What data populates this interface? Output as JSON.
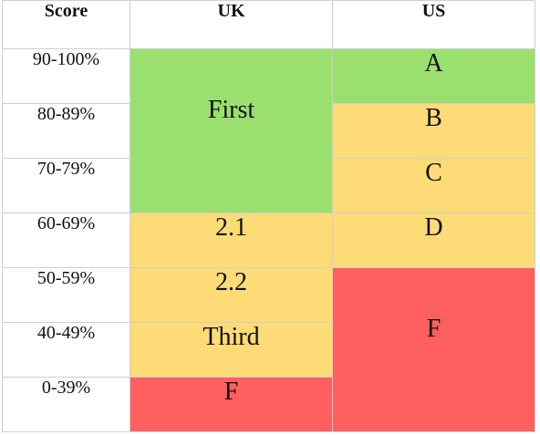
{
  "table": {
    "headers": {
      "score": "Score",
      "uk": "UK",
      "us": "US"
    },
    "score_ranges": [
      "90-100%",
      "80-89%",
      "70-79%",
      "60-69%",
      "50-59%",
      "40-49%",
      "0-39%"
    ],
    "uk_grades": {
      "first": "First",
      "two_one": "2.1",
      "two_two": "2.2",
      "third": "Third",
      "fail": "F"
    },
    "us_grades": {
      "a": "A",
      "b": "B",
      "c": "C",
      "d": "D",
      "f": "F"
    }
  },
  "colors": {
    "green": "#9be06f",
    "yellow": "#fddb76",
    "red": "#ff5f5f",
    "border": "#cfcfcf"
  }
}
